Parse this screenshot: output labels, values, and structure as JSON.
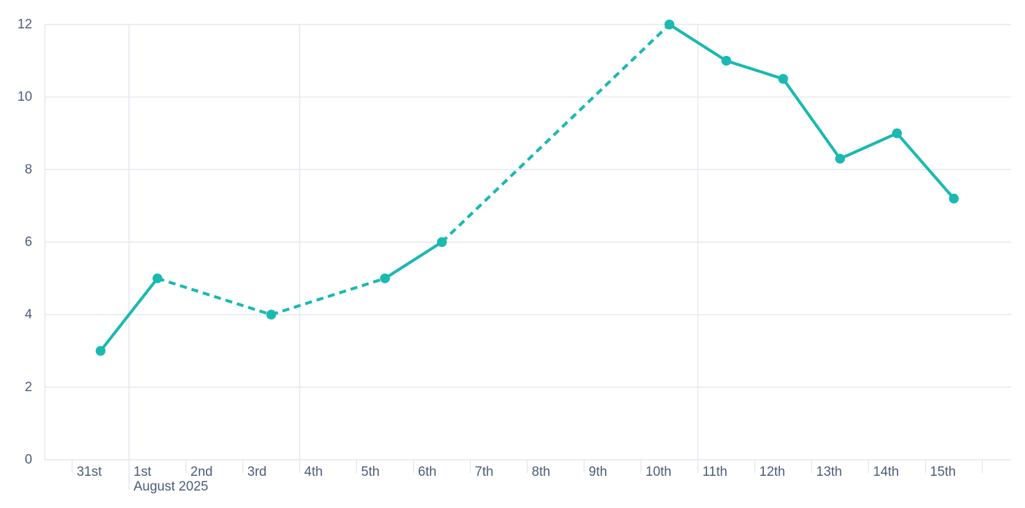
{
  "chart_data": {
    "type": "line",
    "title": "",
    "x_axis": {
      "month_label": "August 2025",
      "tick_labels": [
        "31st",
        "1st",
        "2nd",
        "3rd",
        "4th",
        "5th",
        "6th",
        "7th",
        "8th",
        "9th",
        "10th",
        "11th",
        "12th",
        "13th",
        "14th",
        "15th",
        ""
      ],
      "major_gridline_days": [
        1,
        4,
        11
      ],
      "month_label_day": 1
    },
    "y_axis": {
      "tick_values": [
        0,
        2,
        4,
        6,
        8,
        10,
        12
      ],
      "min": 0,
      "max": 12
    },
    "series": [
      {
        "name": "daily-values",
        "color": "#1ab9b1",
        "marker": "circle",
        "dashed_over_gaps": true,
        "points": [
          {
            "label": "31st",
            "day": 0,
            "value": 3
          },
          {
            "label": "1st",
            "day": 1,
            "value": 5
          },
          {
            "label": "3rd",
            "day": 3,
            "value": 4
          },
          {
            "label": "5th",
            "day": 5,
            "value": 5
          },
          {
            "label": "6th",
            "day": 6,
            "value": 6
          },
          {
            "label": "10th",
            "day": 10,
            "value": 12
          },
          {
            "label": "11th",
            "day": 11,
            "value": 11
          },
          {
            "label": "12th",
            "day": 12,
            "value": 10.5
          },
          {
            "label": "13th",
            "day": 13,
            "value": 8.3
          },
          {
            "label": "14th",
            "day": 14,
            "value": 9
          },
          {
            "label": "15th",
            "day": 15,
            "value": 7.2
          }
        ]
      }
    ],
    "colors": {
      "grid": "#e3e7f1",
      "axis_label": "#4d5b77",
      "background": "#ffffff",
      "accent": "#1ab9b1"
    },
    "legend": "none",
    "grid": "horizontal-all, vertical-major-only"
  }
}
